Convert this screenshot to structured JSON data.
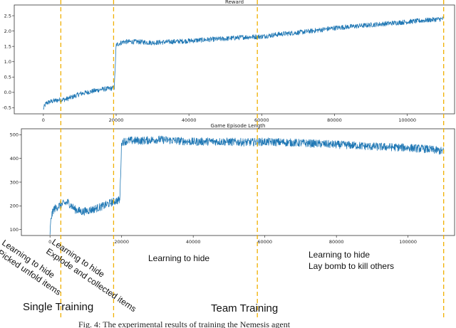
{
  "chart_data": [
    {
      "type": "line",
      "title": "Reward",
      "xlabel": "",
      "ylabel": "",
      "xlim": [
        -8000,
        113000
      ],
      "ylim": [
        -0.7,
        2.85
      ],
      "xticks": [
        0,
        20000,
        40000,
        60000,
        80000,
        100000
      ],
      "xtick_labels": [
        "0",
        "20000",
        "40000",
        "60000",
        "80000",
        "100000"
      ],
      "yticks": [
        -0.5,
        0.0,
        0.5,
        1.0,
        1.5,
        2.0,
        2.5
      ],
      "ytick_labels": [
        "-0.5",
        "0.0",
        "0.5",
        "1.0",
        "1.5",
        "2.0",
        "2.5"
      ],
      "grid": false,
      "series": [
        {
          "color": "#1f77b4",
          "x": [
            0,
            300,
            800,
            2000,
            4000,
            6000,
            8000,
            10000,
            12000,
            14000,
            16000,
            18000,
            19500,
            20000,
            22000,
            26000,
            30000,
            35000,
            40000,
            45000,
            50000,
            55000,
            60000,
            65000,
            70000,
            75000,
            80000,
            85000,
            90000,
            95000,
            100000,
            105000,
            110000
          ],
          "values": [
            -0.55,
            -0.45,
            -0.35,
            -0.3,
            -0.25,
            -0.23,
            -0.15,
            -0.05,
            0.0,
            0.05,
            0.1,
            0.12,
            0.15,
            1.55,
            1.65,
            1.65,
            1.62,
            1.65,
            1.68,
            1.72,
            1.75,
            1.8,
            1.82,
            1.9,
            1.95,
            2.02,
            2.1,
            2.15,
            2.2,
            2.25,
            2.3,
            2.35,
            2.4
          ],
          "noise": 0.08
        }
      ]
    },
    {
      "type": "line",
      "title": "Game Episode Length",
      "xlabel": "",
      "ylabel": "",
      "xlim": [
        -8000,
        113000
      ],
      "ylim": [
        75,
        525
      ],
      "xticks": [
        0,
        20000,
        40000,
        60000,
        80000,
        100000
      ],
      "xtick_labels": [
        "0",
        "20000",
        "40000",
        "60000",
        "80000",
        "100000"
      ],
      "yticks": [
        100,
        200,
        300,
        400,
        500
      ],
      "ytick_labels": [
        "100",
        "200",
        "300",
        "400",
        "500"
      ],
      "grid": false,
      "series": [
        {
          "color": "#1f77b4",
          "x": [
            0,
            300,
            1000,
            3000,
            5000,
            7000,
            9000,
            12000,
            15000,
            18000,
            19500,
            20000,
            22000,
            26000,
            30000,
            35000,
            40000,
            45000,
            50000,
            55000,
            60000,
            65000,
            70000,
            75000,
            80000,
            85000,
            90000,
            95000,
            100000,
            105000,
            110000
          ],
          "values": [
            85,
            150,
            185,
            205,
            215,
            185,
            175,
            185,
            200,
            220,
            225,
            470,
            475,
            475,
            480,
            475,
            470,
            472,
            470,
            468,
            470,
            468,
            465,
            462,
            458,
            455,
            450,
            448,
            445,
            440,
            430
          ],
          "noise": 17
        }
      ]
    }
  ],
  "markers": {
    "color": "#f0b000",
    "x": [
      4800,
      19300,
      58800,
      110000
    ]
  },
  "annotations": {
    "phase1_line1": "Learning to hide",
    "phase1_line2": "Picked unfold items",
    "phase2_line1": "Learning to hide",
    "phase2_line2": "Explode and collected items",
    "phase3": "Learning to hide",
    "phase4_line1": "Learning to hide",
    "phase4_line2": "Lay bomb to kill others",
    "single_training": "Single Training",
    "team_training": "Team Training"
  },
  "caption": "Fig. 4: The experimental results of training the Nemesis agent"
}
